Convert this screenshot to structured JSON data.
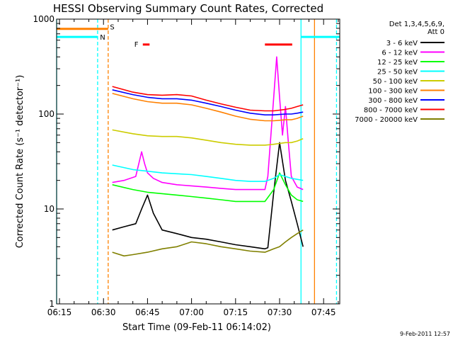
{
  "chart_data": {
    "type": "line",
    "title": "HESSI Observing Summary Count Rates, Corrected",
    "xlabel": "Start Time (09-Feb-11 06:14:02)",
    "ylabel": "Corrected Count Rate (s⁻¹ detector⁻¹)",
    "x_ticks": [
      "06:15",
      "06:30",
      "06:45",
      "07:00",
      "07:15",
      "07:30",
      "07:45"
    ],
    "x_tick_minutes": [
      15,
      30,
      45,
      60,
      75,
      90,
      105
    ],
    "xlim_minutes": [
      14.03,
      110.5
    ],
    "y_scale": "log",
    "ylim": [
      1,
      1000
    ],
    "y_ticks": [
      "1",
      "10",
      "100",
      "1000"
    ],
    "legend_header": [
      "Det 1,3,4,5,6,9,",
      "Att 0"
    ],
    "legend_position": "right",
    "series": [
      {
        "name": "3 - 6 keV",
        "color": "#000000",
        "x": [
          33,
          37,
          41,
          43,
          45,
          47,
          50,
          55,
          60,
          65,
          70,
          75,
          80,
          85,
          86,
          88,
          90,
          92,
          94,
          96,
          98
        ],
        "y": [
          6,
          6.5,
          7,
          10,
          14,
          9,
          6,
          5.5,
          5,
          4.8,
          4.5,
          4.2,
          4,
          3.8,
          3.9,
          15,
          50,
          20,
          12,
          7,
          4
        ]
      },
      {
        "name": "6 - 12 keV",
        "color": "#ff00ff",
        "x": [
          33,
          37,
          41,
          43,
          44,
          45,
          47,
          50,
          55,
          60,
          65,
          70,
          75,
          80,
          85,
          86,
          88,
          89,
          90,
          91,
          92,
          93,
          94,
          96,
          98
        ],
        "y": [
          19,
          20,
          22,
          40,
          30,
          24,
          21,
          19,
          18,
          17.5,
          17,
          16.5,
          16,
          16,
          16,
          22,
          150,
          400,
          150,
          60,
          120,
          50,
          22,
          17,
          16
        ]
      },
      {
        "name": "12 - 25 keV",
        "color": "#00ff00",
        "x": [
          33,
          40,
          45,
          50,
          55,
          60,
          65,
          70,
          75,
          80,
          85,
          88,
          90,
          92,
          94,
          96,
          98
        ],
        "y": [
          18,
          16,
          15,
          14.5,
          14,
          13.5,
          13,
          12.5,
          12,
          12,
          12,
          16,
          24,
          18,
          14,
          12.5,
          12
        ]
      },
      {
        "name": "25 - 50 keV",
        "color": "#00ffff",
        "x": [
          33,
          40,
          45,
          50,
          55,
          60,
          65,
          70,
          75,
          80,
          85,
          88,
          90,
          92,
          94,
          96,
          98
        ],
        "y": [
          29,
          26,
          25,
          24,
          23.5,
          23,
          22,
          21,
          20,
          19.5,
          19.5,
          21,
          23,
          22,
          21,
          20.5,
          20
        ]
      },
      {
        "name": "50 - 100 keV",
        "color": "#cccc00",
        "x": [
          33,
          40,
          45,
          50,
          55,
          60,
          65,
          70,
          75,
          80,
          85,
          88,
          90,
          92,
          94,
          96,
          98
        ],
        "y": [
          68,
          62,
          59,
          58,
          58,
          56,
          53,
          50,
          48,
          47,
          47,
          48,
          49,
          50,
          50,
          52,
          55
        ]
      },
      {
        "name": "100 - 300 keV",
        "color": "#ff8000",
        "x": [
          33,
          40,
          45,
          50,
          55,
          60,
          65,
          70,
          75,
          80,
          85,
          88,
          90,
          92,
          94,
          96,
          98
        ],
        "y": [
          165,
          145,
          135,
          130,
          130,
          125,
          115,
          105,
          95,
          88,
          85,
          85,
          86,
          87,
          87,
          90,
          95
        ]
      },
      {
        "name": "300 - 800 keV",
        "color": "#0000ff",
        "x": [
          33,
          40,
          45,
          50,
          55,
          60,
          65,
          70,
          75,
          80,
          85,
          88,
          90,
          92,
          94,
          96,
          98
        ],
        "y": [
          180,
          160,
          150,
          145,
          145,
          140,
          130,
          120,
          110,
          102,
          98,
          98,
          99,
          100,
          100,
          102,
          105
        ]
      },
      {
        "name": "800 - 7000 keV",
        "color": "#ff0000",
        "x": [
          33,
          40,
          45,
          50,
          55,
          60,
          65,
          70,
          75,
          80,
          85,
          88,
          90,
          92,
          94,
          96,
          98
        ],
        "y": [
          195,
          170,
          160,
          158,
          160,
          155,
          140,
          128,
          118,
          110,
          108,
          108,
          110,
          112,
          115,
          120,
          125
        ]
      },
      {
        "name": "7000 - 20000 keV",
        "color": "#808000",
        "x": [
          33,
          37,
          40,
          45,
          50,
          55,
          60,
          65,
          70,
          75,
          80,
          85,
          88,
          90,
          92,
          94,
          96,
          98
        ],
        "y": [
          3.5,
          3.2,
          3.3,
          3.5,
          3.8,
          4,
          4.5,
          4.3,
          4,
          3.8,
          3.6,
          3.5,
          3.8,
          4,
          4.5,
          5,
          5.5,
          6
        ]
      }
    ],
    "segments": [
      {
        "color": "#ff8000",
        "x1": 14.03,
        "x2": 31.6,
        "y": 790
      },
      {
        "color": "#00ffff",
        "x1": 14.03,
        "x2": 28.0,
        "y": 650
      },
      {
        "color": "#00ffff",
        "x1": 97.3,
        "x2": 110.5,
        "y": 650
      }
    ],
    "vlines": [
      {
        "color": "#00ffff",
        "style": "solid",
        "x": 14.03
      },
      {
        "color": "#00ffff",
        "style": "dashed",
        "x": 28.0
      },
      {
        "color": "#ff8000",
        "style": "dashed",
        "x": 31.6
      },
      {
        "color": "#00ffff",
        "style": "solid",
        "x": 97.3
      },
      {
        "color": "#ff8000",
        "style": "solid",
        "x": 101.9
      },
      {
        "color": "#00ffff",
        "style": "dashed",
        "x": 109.4
      }
    ],
    "flag_bars": [
      {
        "color": "#ff0000",
        "x1": 43.4,
        "x2": 45.7,
        "y": 540
      },
      {
        "color": "#ff0000",
        "x1": 85.0,
        "x2": 94.3,
        "y": 540
      }
    ],
    "annotations": [
      {
        "text": "S",
        "color": "#ff8000",
        "x": 32.2,
        "y": 820
      },
      {
        "text": "N",
        "color": "#00ffff",
        "x": 28.8,
        "y": 640
      },
      {
        "text": "F",
        "color": "#ff0000",
        "x": 40.5,
        "y": 540
      }
    ]
  },
  "footer": {
    "date_stamp": "9-Feb-2011 12:57"
  }
}
